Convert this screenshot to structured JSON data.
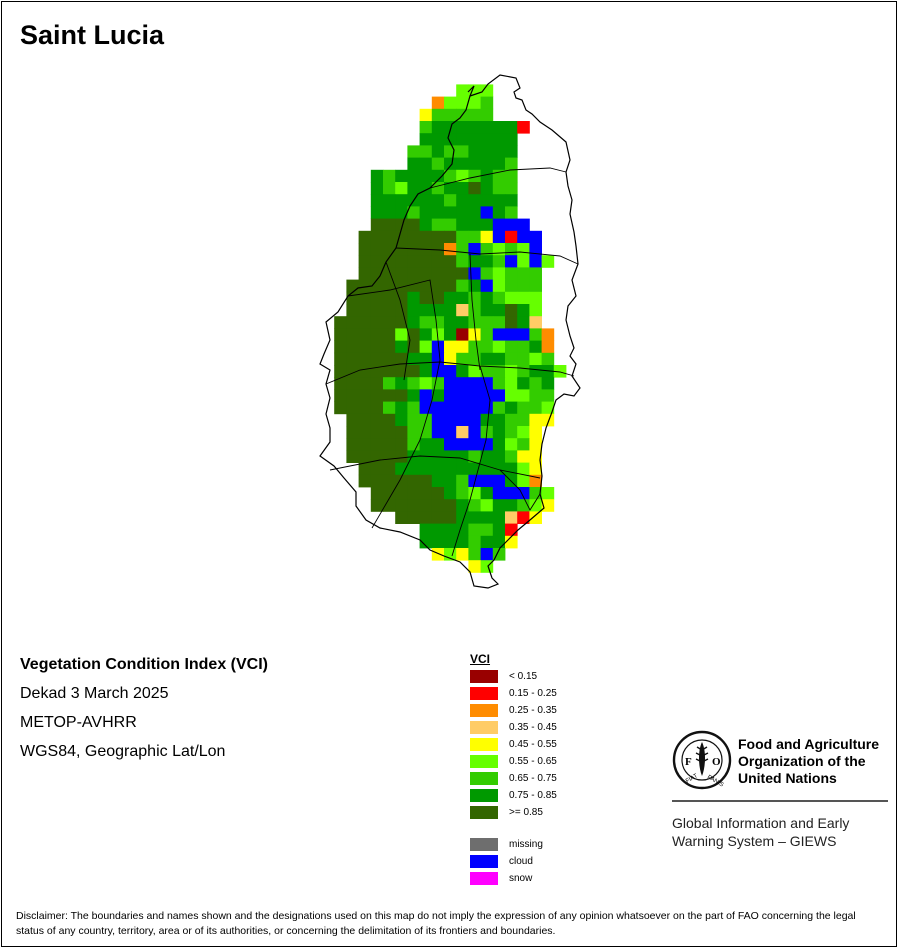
{
  "title": "Saint Lucia",
  "info": {
    "product": "Vegetation Condition Index (VCI)",
    "period": "Dekad 3 March 2025",
    "sensor": "METOP-AVHRR",
    "projection": "WGS84, Geographic Lat/Lon"
  },
  "legend": {
    "title": "VCI",
    "classes": [
      {
        "label": "< 0.15",
        "color": "#990000"
      },
      {
        "label": "0.15 - 0.25",
        "color": "#ff0000"
      },
      {
        "label": "0.25 - 0.35",
        "color": "#ff8c00"
      },
      {
        "label": "0.35 - 0.45",
        "color": "#ffcc66"
      },
      {
        "label": "0.45 - 0.55",
        "color": "#ffff00"
      },
      {
        "label": "0.55 - 0.65",
        "color": "#66ff00"
      },
      {
        "label": "0.65 - 0.75",
        "color": "#33cc00"
      },
      {
        "label": "0.75 - 0.85",
        "color": "#009900"
      },
      {
        "label": ">= 0.85",
        "color": "#336600"
      }
    ],
    "other": [
      {
        "label": "missing",
        "color": "#6e6e6e"
      },
      {
        "label": "cloud",
        "color": "#0000ff"
      },
      {
        "label": "snow",
        "color": "#ff00ff"
      }
    ]
  },
  "organization": {
    "logo_text": [
      "FAO",
      "FIAT PANIS"
    ],
    "name_lines": [
      "Food and Agriculture",
      "Organization of the",
      "United Nations"
    ],
    "system_lines": [
      "Global Information and Early",
      "Warning System – GIEWS"
    ]
  },
  "disclaimer": "Disclaimer: The boundaries and names shown and the designations used on this map do not imply the expression of any opinion whatsoever on the part of FAO concerning the legal status of any country, territory, area or of its authorities, or concerning the delimitation of its frontiers and boundaries.",
  "grid_classes": {
    "0": null,
    "a": "#990000",
    "b": "#ff0000",
    "c": "#ff8c00",
    "d": "#ffcc66",
    "e": "#ffff00",
    "f": "#66ff00",
    "g": "#33cc00",
    "h": "#009900",
    "i": "#336600",
    "k": "#0000ff"
  },
  "grid_rows": [
    "00000000000000000000",
    "00000000000000000000",
    "00000000000fff000000",
    "000000000cfffg000000",
    "00000000eggggg000000",
    "00000000ghhhhhhhb000",
    "00000000hhhhhhhh0000",
    "0000000gghgghhhh0000",
    "0000000hhghhhhhg0000",
    "0000hghhhhgfghgg0000",
    "0000hgfhhghhihgg0000",
    "0000hhhhhhghhhhh0000",
    "0000hhhghhhhhkhg0000",
    "0000iiiihgghhhkkk000",
    "000iiiiiiiiggekbkk00",
    "000iiiiiiicgkgfgfk00",
    "000iiiiiiiighhgkfkf0",
    "000iiiiiiiiikgfggg00",
    "00iiiiiiiiighkfggg00",
    "00iiiiihiihhghgfff00",
    "00iiiiihhhhdghhihf00",
    "0iiiiiihgghhgggihd00",
    "0iiiiifihfhaegkkkgc0",
    "0iiiiihifkeeggfgghc0",
    "0iiiiiihhkegghhggfg0",
    "0iiiiiiihkkhfggfghhf",
    "0iiiighgfgkkkkgfhgh0",
    "0iiiiiihkhkkkkkffgg0",
    "0iiiighgkkkkkkghggf0",
    "00iiiihggkkkkhhggee0",
    "00iiiiiggkkdkghgfe00",
    "00iiiiighhkkkkhfge00",
    "00iiiiihhhhhghhgee00",
    "000iiihhhhhhhhhhfe00",
    "000iiiiiihhgkkkhfc00",
    "0000iiiiiihgfhkkkgf0",
    "0000iiiiiiihgfhhgfe0",
    "000000iiiiihhhhdbe00",
    "00000000hhhhgghb0000",
    "00000000hhhhghhe0000",
    "000000000efegkg00000",
    "000000000000ef000000"
  ]
}
